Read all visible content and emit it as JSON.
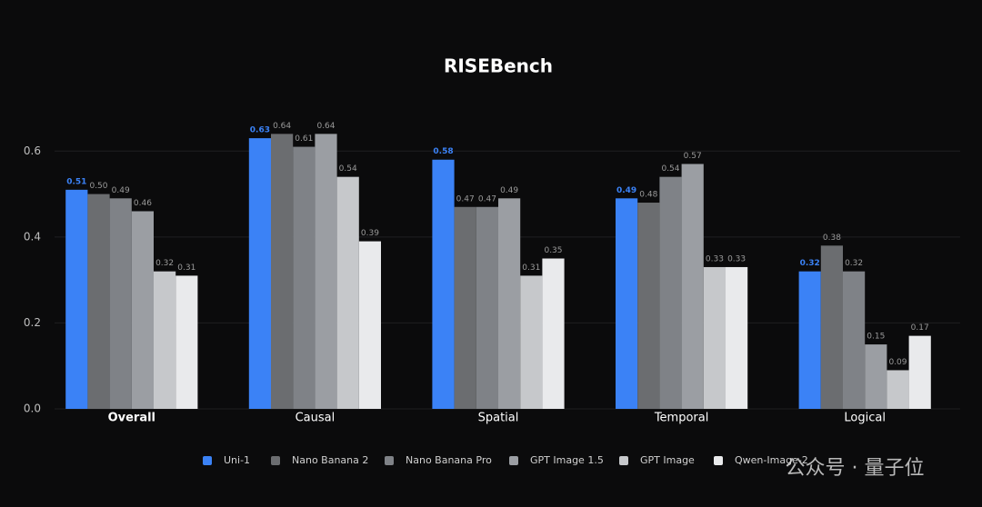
{
  "chart_data": {
    "type": "bar",
    "title": "RISEBench",
    "categories": [
      "Overall",
      "Causal",
      "Spatial",
      "Temporal",
      "Logical"
    ],
    "series": [
      {
        "name": "Uni-1",
        "color": "#3b82f6",
        "values": [
          0.51,
          0.63,
          0.58,
          0.49,
          0.32
        ],
        "value_labels": [
          "0.51",
          "0.63",
          "0.58",
          "0.49",
          "0.32"
        ]
      },
      {
        "name": "Nano Banana 2",
        "color": "#6b6d70",
        "values": [
          0.5,
          0.64,
          0.47,
          0.48,
          0.38
        ],
        "value_labels": [
          "0.50",
          "0.64",
          "0.47",
          "0.48",
          "0.38"
        ]
      },
      {
        "name": "Nano Banana Pro",
        "color": "#7f8287",
        "values": [
          0.49,
          0.61,
          0.47,
          0.54,
          0.32
        ],
        "value_labels": [
          "0.49",
          "0.61",
          "0.47",
          "0.54",
          "0.32"
        ]
      },
      {
        "name": "GPT Image 1.5",
        "color": "#9b9ea3",
        "values": [
          0.46,
          0.64,
          0.49,
          0.57,
          0.15
        ],
        "value_labels": [
          "0.46",
          "0.64",
          "0.49",
          "0.57",
          "0.15"
        ]
      },
      {
        "name": "GPT Image",
        "color": "#c6c8cb",
        "values": [
          0.32,
          0.54,
          0.31,
          0.33,
          0.09
        ],
        "value_labels": [
          "0.32",
          "0.54",
          "0.31",
          "0.33",
          "0.09"
        ]
      },
      {
        "name": "Qwen-Image-2",
        "color": "#e9eaec",
        "values": [
          0.31,
          0.39,
          0.35,
          0.33,
          0.17
        ],
        "value_labels": [
          "0.31",
          "0.39",
          "0.35",
          "0.33",
          "0.17"
        ]
      }
    ],
    "ylim": [
      0,
      0.7
    ],
    "yticks": [
      {
        "value": 0,
        "label": "0.0"
      },
      0.2,
      0.4,
      0.6
    ],
    "grid": true
  },
  "watermark": "公众号 · 量子位"
}
